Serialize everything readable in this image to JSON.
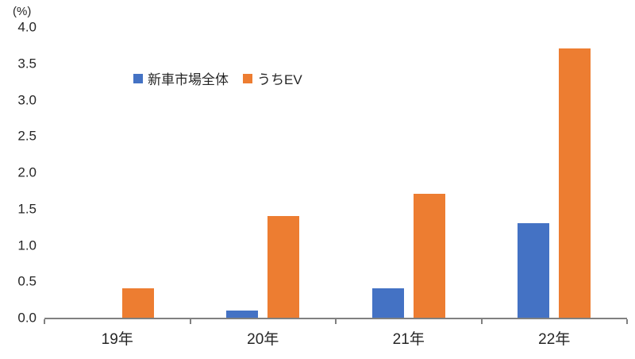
{
  "chart_data": {
    "type": "bar",
    "title": "",
    "unit_label": "(%)",
    "categories": [
      "19年",
      "20年",
      "21年",
      "22年"
    ],
    "series": [
      {
        "name": "新車市場全体",
        "color": "#4472c4",
        "values": [
          0.0,
          0.1,
          0.4,
          1.3
        ]
      },
      {
        "name": "うちEV",
        "color": "#ed7d31",
        "values": [
          0.4,
          1.4,
          1.7,
          3.7
        ]
      }
    ],
    "ylim": [
      0,
      4.0
    ],
    "ytick_step": 0.5,
    "yticks": [
      "4.0",
      "3.5",
      "3.0",
      "2.5",
      "2.0",
      "1.5",
      "1.0",
      "0.5",
      "0.0"
    ],
    "grid": false,
    "legend_position": "upper-left-inside",
    "axis_color": "#808080"
  }
}
